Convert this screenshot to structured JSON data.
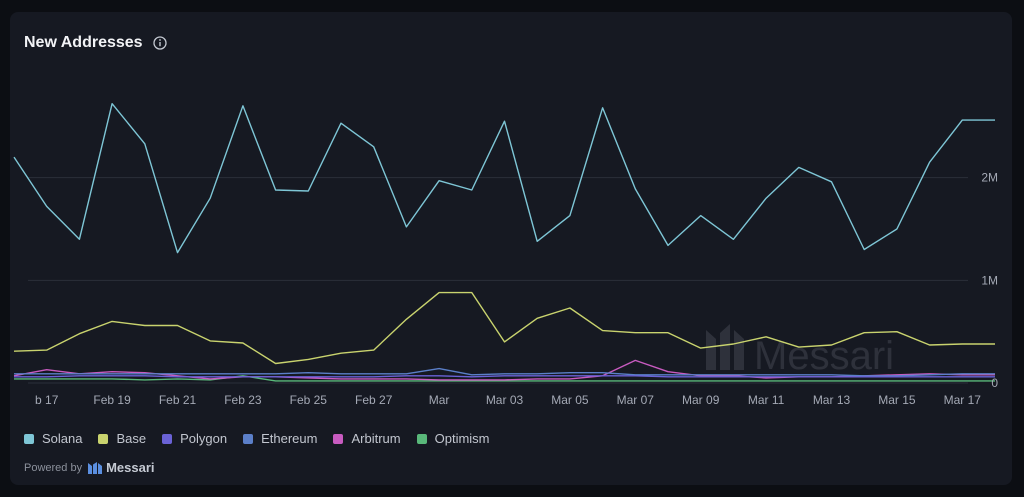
{
  "title": "New Addresses",
  "colors": {
    "Solana": "#7ec6d6",
    "Base": "#c9d36e",
    "Polygon": "#6a62d6",
    "Ethereum": "#5b7fc9",
    "Arbitrum": "#c85bc0",
    "Optimism": "#59b87a"
  },
  "watermark": "Messari",
  "footer": {
    "powered_by": "Powered by",
    "brand": "Messari"
  },
  "chart_data": {
    "type": "line",
    "x": [
      "Feb 16",
      "Feb 17",
      "Feb 18",
      "Feb 19",
      "Feb 20",
      "Feb 21",
      "Feb 22",
      "Feb 23",
      "Feb 24",
      "Feb 25",
      "Feb 26",
      "Feb 27",
      "Feb 28",
      "Mar 01",
      "Mar 02",
      "Mar 03",
      "Mar 04",
      "Mar 05",
      "Mar 06",
      "Mar 07",
      "Mar 08",
      "Mar 09",
      "Mar 10",
      "Mar 11",
      "Mar 12",
      "Mar 13",
      "Mar 14",
      "Mar 15",
      "Mar 16",
      "Mar 17",
      "Mar 18"
    ],
    "x_tick_labels": [
      "b 17",
      "Feb 19",
      "Feb 21",
      "Feb 23",
      "Feb 25",
      "Feb 27",
      "Mar",
      "Mar 03",
      "Mar 05",
      "Mar 07",
      "Mar 09",
      "Mar 11",
      "Mar 13",
      "Mar 15",
      "Mar 17"
    ],
    "y_ticks": [
      {
        "value": 0,
        "label": "0"
      },
      {
        "value": 1000000,
        "label": "1M"
      },
      {
        "value": 2000000,
        "label": "2M"
      }
    ],
    "ylim": [
      0,
      2800000
    ],
    "grid": true,
    "legend_position": "bottom-left",
    "series": [
      {
        "name": "Solana",
        "values": [
          2200000,
          1720000,
          1400000,
          2720000,
          2330000,
          1270000,
          1800000,
          2700000,
          1880000,
          1870000,
          2530000,
          2300000,
          1520000,
          1970000,
          1880000,
          2550000,
          1380000,
          1630000,
          2680000,
          1890000,
          1340000,
          1630000,
          1400000,
          1800000,
          2100000,
          1960000,
          1300000,
          1500000,
          2150000,
          2560000,
          2560000
        ]
      },
      {
        "name": "Base",
        "values": [
          310000,
          320000,
          480000,
          600000,
          560000,
          560000,
          410000,
          390000,
          190000,
          230000,
          290000,
          320000,
          620000,
          880000,
          880000,
          400000,
          630000,
          730000,
          510000,
          490000,
          490000,
          340000,
          380000,
          450000,
          350000,
          370000,
          490000,
          500000,
          370000,
          380000,
          380000
        ]
      },
      {
        "name": "Polygon",
        "values": [
          60000,
          60000,
          70000,
          70000,
          70000,
          60000,
          60000,
          60000,
          60000,
          60000,
          60000,
          60000,
          70000,
          70000,
          60000,
          70000,
          70000,
          70000,
          70000,
          70000,
          60000,
          60000,
          60000,
          60000,
          60000,
          60000,
          60000,
          60000,
          60000,
          60000,
          60000
        ]
      },
      {
        "name": "Ethereum",
        "values": [
          90000,
          90000,
          90000,
          90000,
          90000,
          90000,
          90000,
          90000,
          90000,
          100000,
          90000,
          90000,
          90000,
          140000,
          80000,
          90000,
          90000,
          100000,
          100000,
          80000,
          80000,
          80000,
          80000,
          80000,
          80000,
          80000,
          70000,
          70000,
          80000,
          90000,
          90000
        ]
      },
      {
        "name": "Arbitrum",
        "values": [
          70000,
          130000,
          90000,
          110000,
          100000,
          70000,
          40000,
          60000,
          60000,
          50000,
          40000,
          40000,
          40000,
          30000,
          30000,
          30000,
          40000,
          40000,
          70000,
          220000,
          110000,
          70000,
          70000,
          50000,
          60000,
          60000,
          70000,
          80000,
          90000,
          80000,
          80000
        ]
      },
      {
        "name": "Optimism",
        "values": [
          40000,
          40000,
          40000,
          40000,
          30000,
          40000,
          30000,
          70000,
          20000,
          20000,
          20000,
          20000,
          20000,
          20000,
          20000,
          20000,
          20000,
          20000,
          20000,
          20000,
          20000,
          20000,
          20000,
          20000,
          20000,
          20000,
          20000,
          20000,
          20000,
          20000,
          20000
        ]
      }
    ]
  }
}
